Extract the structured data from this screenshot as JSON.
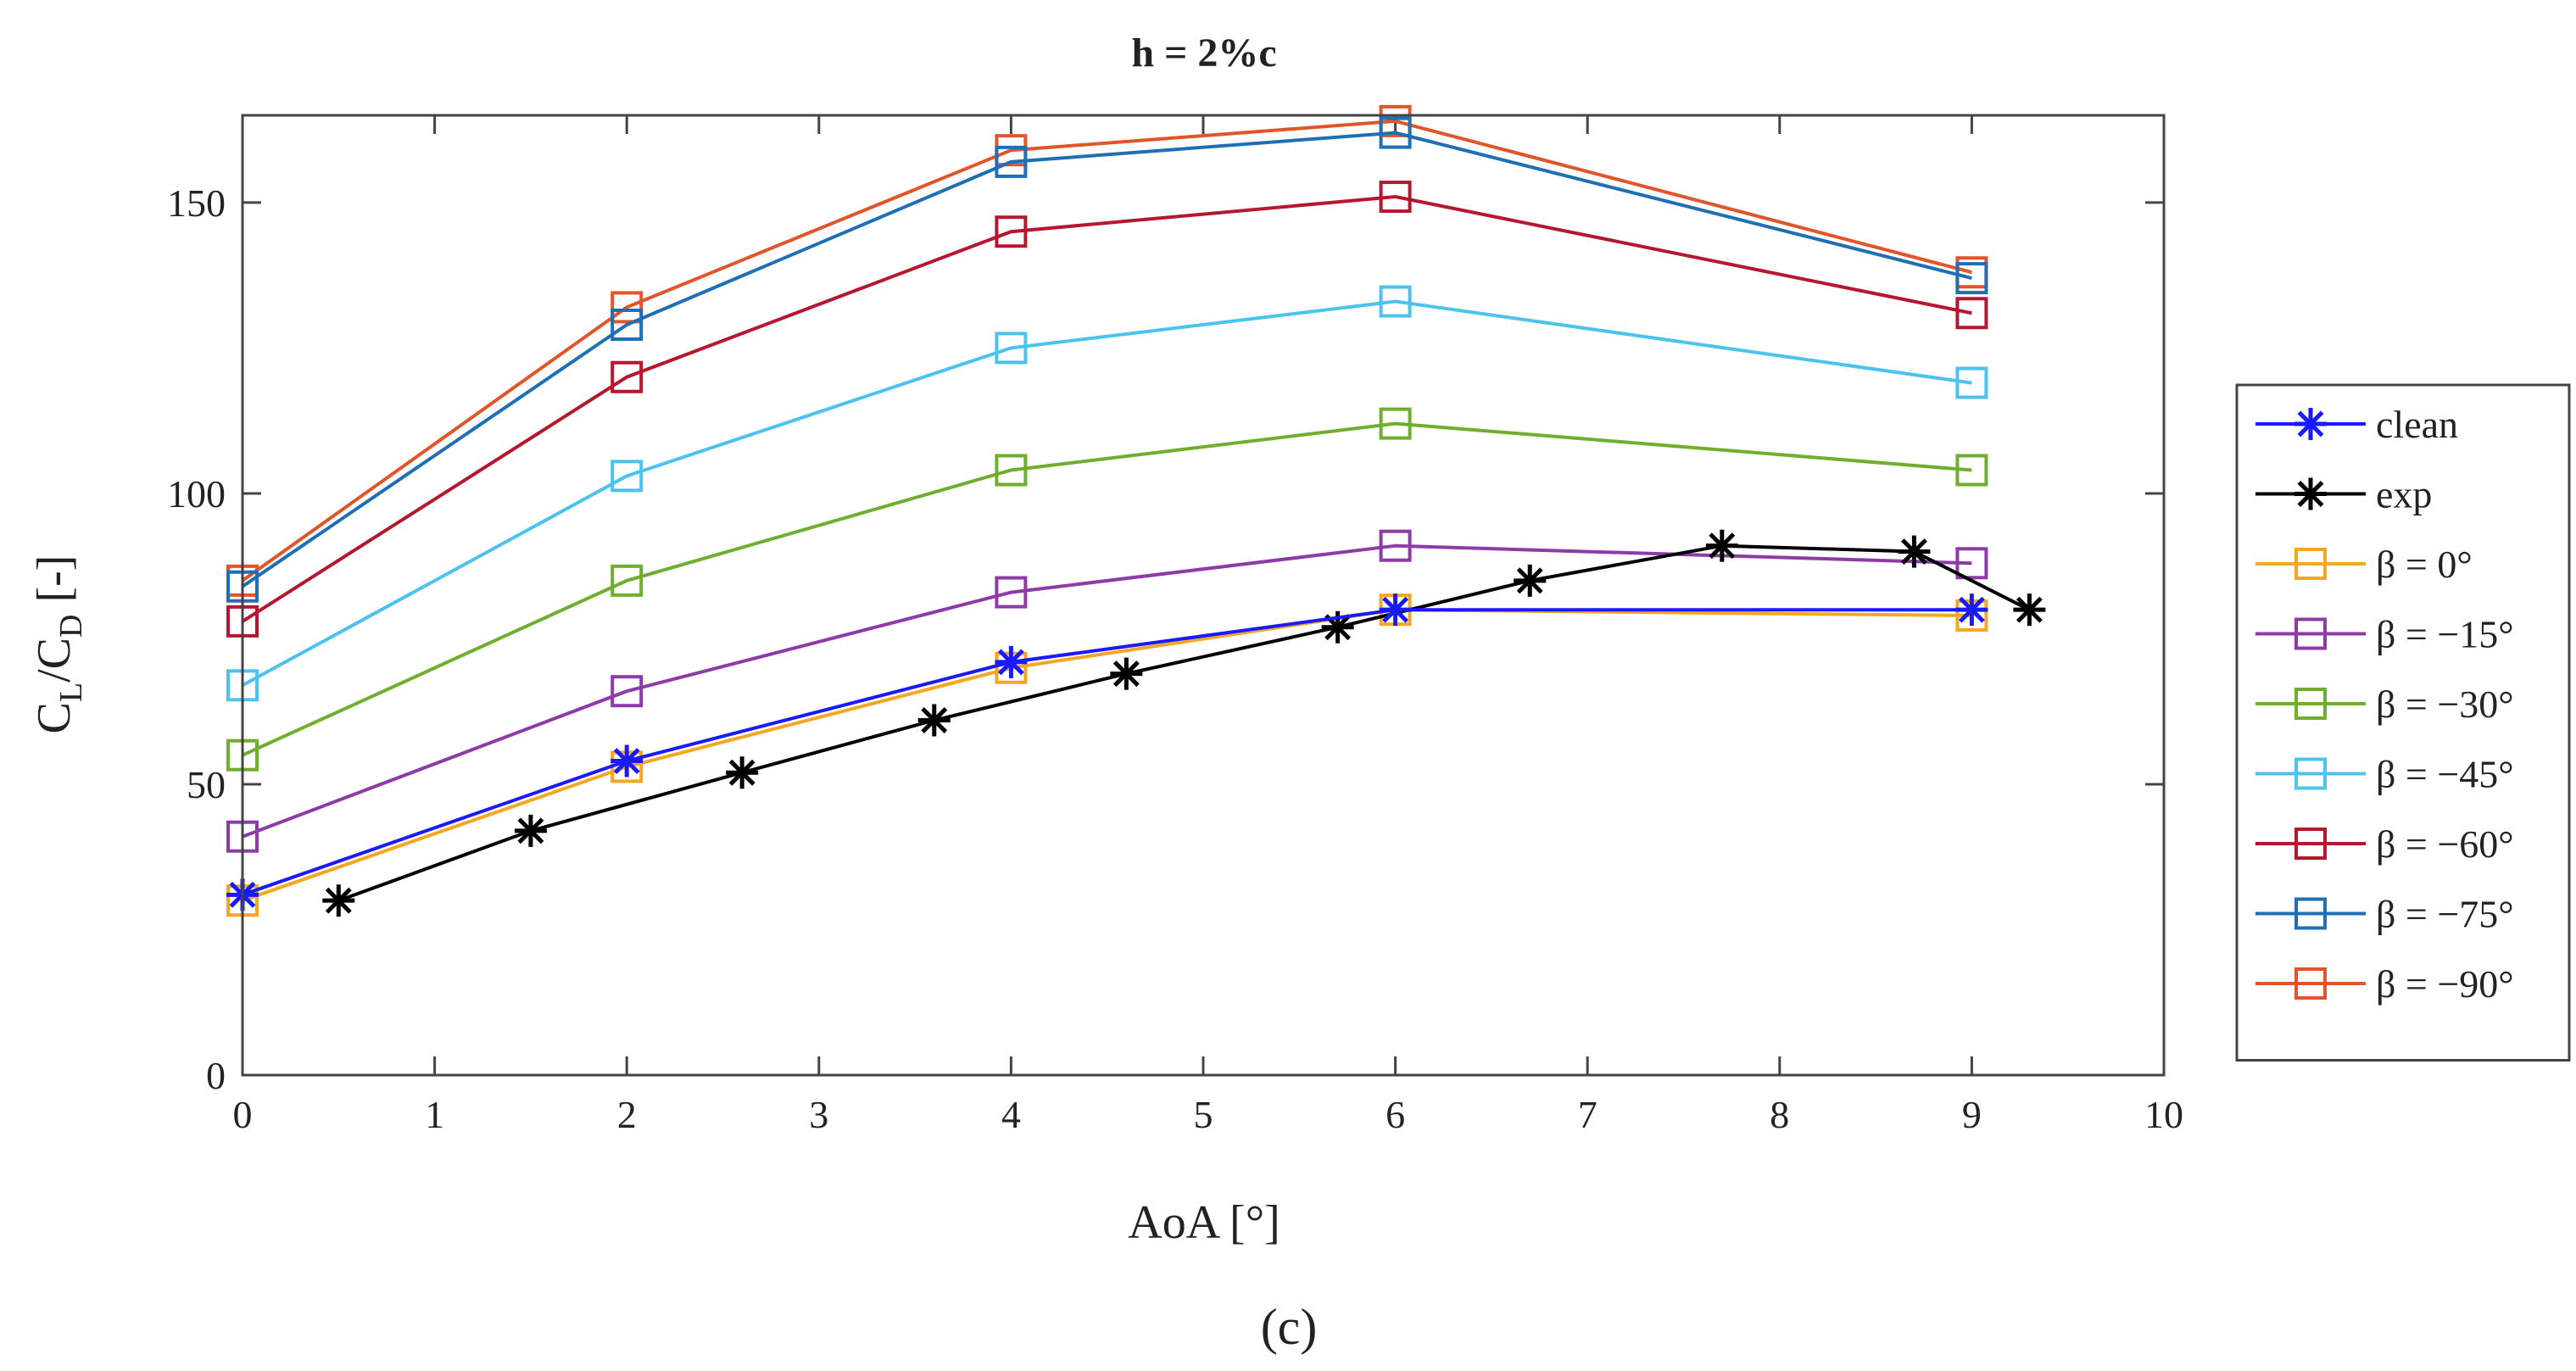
{
  "chart_data": {
    "type": "line",
    "title": "h = 2%c",
    "xlabel": "AoA [°]",
    "ylabel": {
      "base": "C",
      "sub1": "L",
      "mid": "/C",
      "sub2": "D",
      "tail": " [-]"
    },
    "xlim": [
      0,
      10
    ],
    "ylim": [
      0,
      165
    ],
    "xticks": [
      0,
      1,
      2,
      3,
      4,
      5,
      6,
      7,
      8,
      9,
      10
    ],
    "yticks": [
      0,
      50,
      100,
      150
    ],
    "grid": false,
    "legend_position": "right",
    "caption": "(c)",
    "series": [
      {
        "name": "clean",
        "color": "#1a1aff",
        "marker": "star",
        "x": [
          0,
          2,
          4,
          6,
          9
        ],
        "y": [
          31,
          54,
          71,
          80,
          80
        ]
      },
      {
        "name": "exp",
        "color": "#000000",
        "marker": "star",
        "x": [
          0.5,
          1.5,
          2.6,
          3.6,
          4.6,
          5.7,
          6.7,
          7.7,
          8.7,
          9.3
        ],
        "y": [
          30,
          42,
          52,
          61,
          69,
          77,
          85,
          91,
          90,
          80
        ]
      },
      {
        "name": "β = 0°",
        "color": "#f5a623",
        "marker": "square",
        "x": [
          0,
          2,
          4,
          6,
          9
        ],
        "y": [
          30,
          53,
          70,
          80,
          79
        ]
      },
      {
        "name": "β = −15°",
        "color": "#8e3ba8",
        "marker": "square",
        "x": [
          0,
          2,
          4,
          6,
          9
        ],
        "y": [
          41,
          66,
          83,
          91,
          88
        ]
      },
      {
        "name": "β = −30°",
        "color": "#6fae2e",
        "marker": "square",
        "x": [
          0,
          2,
          4,
          6,
          9
        ],
        "y": [
          55,
          85,
          104,
          112,
          104
        ]
      },
      {
        "name": "β = −45°",
        "color": "#4cc3ee",
        "marker": "square",
        "x": [
          0,
          2,
          4,
          6,
          9
        ],
        "y": [
          67,
          103,
          125,
          133,
          119
        ]
      },
      {
        "name": "β = −60°",
        "color": "#b5172f",
        "marker": "square",
        "x": [
          0,
          2,
          4,
          6,
          9
        ],
        "y": [
          78,
          120,
          145,
          151,
          131
        ]
      },
      {
        "name": "β = −75°",
        "color": "#1f6fb5",
        "marker": "square",
        "x": [
          0,
          2,
          4,
          6,
          9
        ],
        "y": [
          84,
          129,
          157,
          162,
          137
        ]
      },
      {
        "name": "β = −90°",
        "color": "#e0562a",
        "marker": "square",
        "x": [
          0,
          2,
          4,
          6,
          9
        ],
        "y": [
          85,
          132,
          159,
          164,
          138
        ]
      }
    ]
  }
}
